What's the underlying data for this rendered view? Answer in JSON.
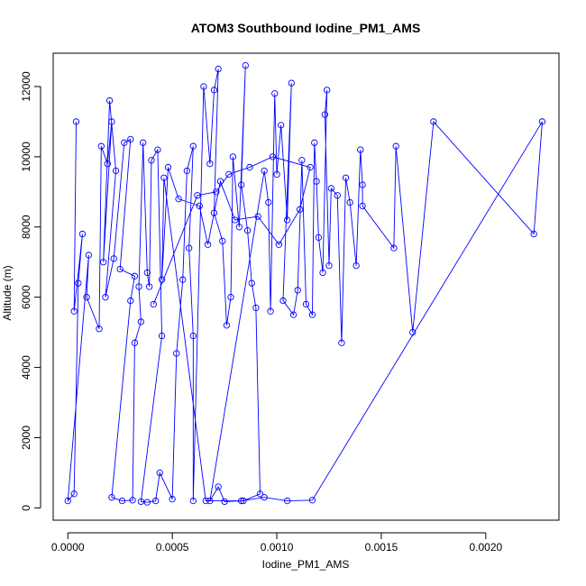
{
  "chart_data": {
    "type": "scatter",
    "title": "ATOM3 Southbound Iodine_PM1_AMS",
    "xlabel": "Iodine_PM1_AMS",
    "ylabel": "Altitude (m)",
    "xlim": [
      -7e-05,
      0.00235
    ],
    "ylim": [
      -350,
      12950
    ],
    "x_ticks": [
      0.0,
      0.0005,
      0.001,
      0.0015,
      0.002
    ],
    "x_tick_labels": [
      "0.0000",
      "0.0005",
      "0.0010",
      "0.0015",
      "0.0020"
    ],
    "y_ticks": [
      0,
      2000,
      4000,
      6000,
      8000,
      10000,
      12000
    ],
    "y_tick_labels": [
      "0",
      "2000",
      "4000",
      "6000",
      "8000",
      "10000",
      "12000"
    ],
    "connect_points": true,
    "point_style": "open-circle",
    "grid": false,
    "legend": "none",
    "series": [
      {
        "color": "#0000ff",
        "points": [
          [
            4e-05,
            11000
          ],
          [
            3e-05,
            5600
          ],
          [
            7e-05,
            7800
          ],
          [
            5e-05,
            6400
          ],
          [
            3e-05,
            400
          ],
          [
            0.0,
            200
          ],
          [
            0.0001,
            7200
          ],
          [
            9e-05,
            6000
          ],
          [
            0.00015,
            5100
          ],
          [
            0.00016,
            10300
          ],
          [
            0.00019,
            9800
          ],
          [
            0.00021,
            11000
          ],
          [
            0.00017,
            7000
          ],
          [
            0.0002,
            11600
          ],
          [
            0.00023,
            9600
          ],
          [
            0.00018,
            6000
          ],
          [
            0.00022,
            7100
          ],
          [
            0.00027,
            10400
          ],
          [
            0.0003,
            10500
          ],
          [
            0.00025,
            6800
          ],
          [
            0.00032,
            6600
          ],
          [
            0.0003,
            5900
          ],
          [
            0.00021,
            300
          ],
          [
            0.00026,
            200
          ],
          [
            0.00031,
            220
          ],
          [
            0.00032,
            4700
          ],
          [
            0.00035,
            5300
          ],
          [
            0.00034,
            6300
          ],
          [
            0.00036,
            10400
          ],
          [
            0.00038,
            6700
          ],
          [
            0.00039,
            6300
          ],
          [
            0.0004,
            9900
          ],
          [
            0.00043,
            10200
          ],
          [
            0.00045,
            4900
          ],
          [
            0.00035,
            180
          ],
          [
            0.00038,
            160
          ],
          [
            0.00042,
            200
          ],
          [
            0.00044,
            1000
          ],
          [
            0.0005,
            250
          ],
          [
            0.00052,
            4400
          ],
          [
            0.00055,
            6500
          ],
          [
            0.00057,
            9600
          ],
          [
            0.0006,
            10300
          ],
          [
            0.00058,
            7400
          ],
          [
            0.0006,
            4900
          ],
          [
            0.0006,
            200
          ],
          [
            0.00065,
            12000
          ],
          [
            0.00068,
            9800
          ],
          [
            0.0007,
            11900
          ],
          [
            0.00072,
            12500
          ],
          [
            0.0007,
            8400
          ],
          [
            0.00074,
            7600
          ],
          [
            0.00076,
            5200
          ],
          [
            0.00078,
            6000
          ],
          [
            0.00079,
            10000
          ],
          [
            0.00082,
            8000
          ],
          [
            0.00085,
            12600
          ],
          [
            0.00083,
            9200
          ],
          [
            0.00086,
            7900
          ],
          [
            0.00088,
            6400
          ],
          [
            0.0009,
            5700
          ],
          [
            0.00092,
            400
          ],
          [
            0.00084,
            200
          ],
          [
            0.00075,
            180
          ],
          [
            0.00072,
            600
          ],
          [
            0.00068,
            200
          ],
          [
            0.00094,
            9600
          ],
          [
            0.00096,
            8700
          ],
          [
            0.00097,
            5600
          ],
          [
            0.00099,
            11800
          ],
          [
            0.001,
            9500
          ],
          [
            0.00102,
            10900
          ],
          [
            0.00105,
            8200
          ],
          [
            0.00107,
            12100
          ],
          [
            0.00103,
            5900
          ],
          [
            0.00108,
            5500
          ],
          [
            0.0011,
            6200
          ],
          [
            0.00112,
            9900
          ],
          [
            0.00114,
            5800
          ],
          [
            0.00117,
            5500
          ],
          [
            0.00118,
            10400
          ],
          [
            0.00119,
            9300
          ],
          [
            0.0012,
            7700
          ],
          [
            0.00122,
            6700
          ],
          [
            0.00124,
            11900
          ],
          [
            0.00123,
            11200
          ],
          [
            0.00125,
            6900
          ],
          [
            0.00126,
            9100
          ],
          [
            0.00129,
            8900
          ],
          [
            0.00131,
            4700
          ],
          [
            0.00133,
            9400
          ],
          [
            0.00135,
            8700
          ],
          [
            0.00138,
            6900
          ],
          [
            0.0014,
            10200
          ],
          [
            0.00141,
            9200
          ],
          [
            0.00141,
            8600
          ],
          [
            0.00156,
            7400
          ],
          [
            0.00157,
            10300
          ],
          [
            0.00165,
            5000
          ],
          [
            0.00175,
            11000
          ],
          [
            0.00223,
            7800
          ],
          [
            0.00227,
            11000
          ],
          [
            0.00117,
            220
          ],
          [
            0.00105,
            200
          ],
          [
            0.00094,
            300
          ],
          [
            0.00083,
            200
          ],
          [
            0.00066,
            200
          ],
          [
            0.00046,
            9400
          ],
          [
            0.00045,
            6500
          ],
          [
            0.00048,
            9700
          ],
          [
            0.00053,
            8800
          ],
          [
            0.00063,
            8600
          ],
          [
            0.00067,
            7500
          ],
          [
            0.00073,
            9300
          ],
          [
            0.0008,
            8200
          ],
          [
            0.00091,
            8300
          ],
          [
            0.00101,
            7500
          ],
          [
            0.00111,
            8500
          ],
          [
            0.00116,
            9700
          ],
          [
            0.00098,
            10000
          ],
          [
            0.00087,
            9700
          ],
          [
            0.00077,
            9500
          ],
          [
            0.00071,
            9000
          ],
          [
            0.00062,
            8900
          ],
          [
            0.00041,
            5800
          ]
        ]
      }
    ]
  }
}
